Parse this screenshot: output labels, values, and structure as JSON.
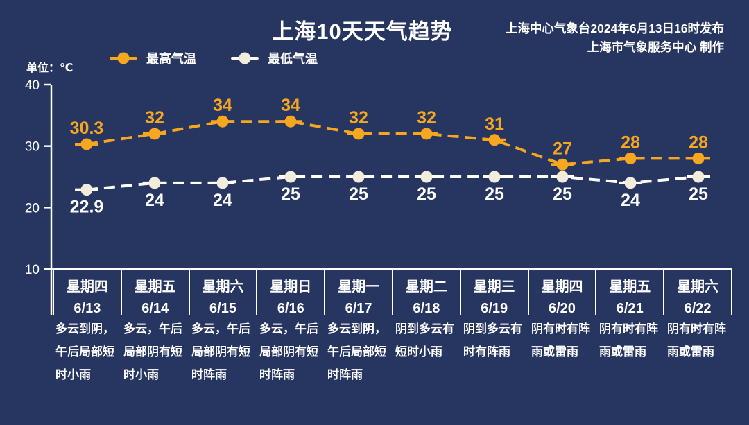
{
  "title": "上海10天天气趋势",
  "publisher": {
    "line1": "上海中心气象台2024年6月13日16时发布",
    "line2": "上海市气象服务中心 制作"
  },
  "unit_label": "单位：℃",
  "colors": {
    "background": "#273561",
    "high": "#F6A71F",
    "low_line": "#FFFFFF",
    "low_marker": "#F2ECDA",
    "text": "#FFFFFF"
  },
  "chart_data": {
    "type": "line",
    "title": "上海10天天气趋势",
    "ylabel": "单位：℃",
    "ylim": [
      10,
      40
    ],
    "yticks": [
      40,
      30,
      20,
      10
    ],
    "grid": false,
    "legend_position": "top",
    "line_style": "dashed",
    "categories": [
      "星期四 6/13",
      "星期五 6/14",
      "星期六 6/15",
      "星期日 6/16",
      "星期一 6/17",
      "星期二 6/18",
      "星期三 6/19",
      "星期四 6/20",
      "星期五 6/21",
      "星期六 6/22"
    ],
    "series": [
      {
        "name": "最高气温",
        "color": "#F6A71F",
        "marker_color": "#F6A71F",
        "label_color": "#F6A71F",
        "values": [
          30.3,
          32,
          34,
          34,
          32,
          32,
          31,
          27,
          28,
          28
        ]
      },
      {
        "name": "最低气温",
        "color": "#FFFFFF",
        "marker_color": "#F2ECDA",
        "label_color": "#FFFFFF",
        "values": [
          22.9,
          24,
          24,
          25,
          25,
          25,
          25,
          25,
          24,
          25
        ]
      }
    ]
  },
  "days": [
    {
      "weekday": "星期四",
      "date": "6/13",
      "weather": [
        "多云到阴，",
        "午后局部短",
        "时小雨"
      ]
    },
    {
      "weekday": "星期五",
      "date": "6/14",
      "weather": [
        "多云，午后",
        "局部阴有短",
        "时小雨"
      ]
    },
    {
      "weekday": "星期六",
      "date": "6/15",
      "weather": [
        "多云，午后",
        "局部阴有短",
        "时阵雨"
      ]
    },
    {
      "weekday": "星期日",
      "date": "6/16",
      "weather": [
        "多云，午后",
        "局部阴有短",
        "时阵雨"
      ]
    },
    {
      "weekday": "星期一",
      "date": "6/17",
      "weather": [
        "多云到阴，",
        "午后局部短",
        "时阵雨"
      ]
    },
    {
      "weekday": "星期二",
      "date": "6/18",
      "weather": [
        "阴到多云有",
        "短时小雨"
      ]
    },
    {
      "weekday": "星期三",
      "date": "6/19",
      "weather": [
        "阴到多云有",
        "时有阵雨"
      ]
    },
    {
      "weekday": "星期四",
      "date": "6/20",
      "weather": [
        "阴有时有阵",
        "雨或雷雨"
      ]
    },
    {
      "weekday": "星期五",
      "date": "6/21",
      "weather": [
        "阴有时有阵",
        "雨或雷雨"
      ]
    },
    {
      "weekday": "星期六",
      "date": "6/22",
      "weather": [
        "阴有时有阵",
        "雨或雷雨"
      ]
    }
  ]
}
